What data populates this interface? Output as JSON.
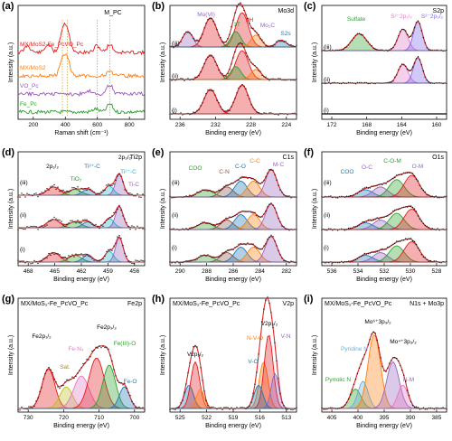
{
  "panels": [
    {
      "id": "a",
      "panel_label": "(a)",
      "title": "",
      "x_label": "Raman shift (cm⁻¹)",
      "y_label": "Intensity (a.u.)",
      "x_ticks": [
        "200",
        "400",
        "600",
        "800"
      ],
      "mpc_label": "M_PC",
      "spectra": [
        {
          "name": "MX/MoS2-Fe_PcVO_Pc",
          "color": "#e41a1c"
        },
        {
          "name": "MX/MoS2",
          "color": "#ff7f0e"
        },
        {
          "name": "VO_Pc",
          "color": "#9b59b6"
        },
        {
          "name": "Fe_Pc",
          "color": "#2ca02c"
        }
      ]
    },
    {
      "id": "b",
      "panel_label": "(b)",
      "title": "Mo3d",
      "x_label": "Binding energy (eV)",
      "y_label": "Intensity (a.u.)",
      "x_ticks": [
        "236",
        "232",
        "228",
        "224"
      ],
      "row_labels": [
        "(iii)",
        "(ii)",
        "(i)"
      ],
      "peak_labels": [
        "Mo(VI)",
        "2H",
        "1T",
        "Mo₂C",
        "S2s"
      ]
    },
    {
      "id": "c",
      "panel_label": "(c)",
      "title": "S2p",
      "x_label": "Binding energy (eV)",
      "y_label": "Intensity (a.u.)",
      "x_ticks": [
        "172",
        "168",
        "164",
        "160"
      ],
      "row_labels": [
        "(iii)",
        "(ii)",
        "(i)"
      ],
      "peak_labels": [
        "Sulfate",
        "S²⁻2p₁/₂",
        "S²⁻2p₃/₂"
      ]
    },
    {
      "id": "d",
      "panel_label": "(d)",
      "title": "Ti2p",
      "x_label": "Binding energy (eV)",
      "y_label": "Intensity (a.u.)",
      "x_ticks": [
        "468",
        "465",
        "462",
        "459",
        "456"
      ],
      "row_labels": [
        "(iii)",
        "(ii)",
        "(i)"
      ],
      "peak_labels": [
        "2p₁/₂",
        "2p₃/₂",
        "Ti³⁺-C",
        "Ti²⁺-C",
        "TiO₂",
        "Ti-C"
      ]
    },
    {
      "id": "e",
      "panel_label": "(e)",
      "title": "C1s",
      "x_label": "Binding energy (eV)",
      "y_label": "Intensity (a.u.)",
      "x_ticks": [
        "290",
        "288",
        "286",
        "284",
        "282"
      ],
      "row_labels": [
        "(iii)",
        "(ii)",
        "(i)"
      ],
      "peak_labels": [
        "COO",
        "C-N",
        "C-O",
        "C-C",
        "M-C"
      ]
    },
    {
      "id": "f",
      "panel_label": "(f)",
      "title": "O1s",
      "x_label": "Binding energy (eV)",
      "y_label": "Intensity (a.u.)",
      "x_ticks": [
        "536",
        "534",
        "532",
        "530",
        "528"
      ],
      "row_labels": [
        "(iii)",
        "(ii)",
        "(i)"
      ],
      "peak_labels": [
        "COO",
        "O-C",
        "C-O-M",
        "O-M"
      ]
    },
    {
      "id": "g",
      "panel_label": "(g)",
      "title": "Fe2p",
      "sample": "MX/MoS₂-Fe_PcVO_Pc",
      "x_label": "Binding energy (eV)",
      "y_label": "Intensity (a.u.)",
      "x_ticks": [
        "730",
        "720",
        "710",
        "700"
      ],
      "peak_labels": [
        "Fe2p₁/₂",
        "Sat.",
        "Fe-N₄",
        "Fe2p₃/₂",
        "Fe(III)-O",
        "Fe-O"
      ]
    },
    {
      "id": "h",
      "panel_label": "(h)",
      "title": "V2p",
      "sample": "MX/MoS₂-Fe_PcVO_Pc",
      "x_label": "Binding energy (eV)",
      "y_label": "Intensity (a.u.)",
      "x_ticks": [
        "525",
        "522",
        "519",
        "516",
        "513"
      ],
      "peak_labels": [
        "V2p₁/₂",
        "V2p₃/₂",
        "N-V-O",
        "V-N",
        "V-O"
      ]
    },
    {
      "id": "i",
      "panel_label": "(i)",
      "title": "N1s + Mo3p",
      "sample": "MX/MoS₂-Fe_PcVO_Pc",
      "x_label": "Binding energy (eV)",
      "y_label": "Intensity (a.u.)",
      "x_ticks": [
        "405",
        "400",
        "395",
        "390",
        "385"
      ],
      "peak_labels": [
        "Mo⁴⁺3p₃/₂",
        "Mo⁶⁺3p₃/₂",
        "Pyridine N",
        "Pyrrolic N",
        "N-M"
      ]
    }
  ],
  "chart_data": [
    {
      "type": "line",
      "panel": "a",
      "xlim": [
        100,
        900
      ],
      "x_unit": "cm⁻¹",
      "series": [
        {
          "name": "MX/MoS2-Fe_PcVO_Pc",
          "peaks": [
            [
              160,
              0.25
            ],
            [
              290,
              0.3
            ],
            [
              380,
              0.7
            ],
            [
              410,
              0.8
            ],
            [
              600,
              0.25
            ],
            [
              680,
              0.3
            ]
          ]
        },
        {
          "name": "MX/MoS2",
          "peaks": [
            [
              380,
              0.55
            ],
            [
              410,
              0.6
            ],
            [
              680,
              0.15
            ]
          ]
        },
        {
          "name": "VO_Pc",
          "peaks": [
            [
              560,
              0.12
            ],
            [
              680,
              0.35
            ]
          ]
        },
        {
          "name": "Fe_Pc",
          "peaks": [
            [
              590,
              0.12
            ],
            [
              680,
              0.3
            ]
          ]
        }
      ]
    },
    {
      "type": "line",
      "panel": "b",
      "xlim": [
        237,
        224
      ],
      "peaks_eV": {
        "Mo(VI)": 235.5,
        "2H_3d3/2": 232.3,
        "2H_3d5/2": 229.3,
        "1T": 230.0,
        "Mo2C": 228.5,
        "S2s": 226.5
      }
    },
    {
      "type": "line",
      "panel": "c",
      "xlim": [
        172,
        159
      ],
      "peaks_eV": {
        "Sulfate": 168.5,
        "S2p1/2": 163.3,
        "S2p3/2": 161.8
      }
    },
    {
      "type": "line",
      "panel": "d",
      "xlim": [
        469,
        455
      ],
      "peaks_eV": {
        "2p1/2": 465.0,
        "TiO2": 461.5,
        "Ti3+-C": 461.0,
        "Ti2+-C": 459.3,
        "2p3/2": 458.7,
        "Ti-C": 458.0
      }
    },
    {
      "type": "line",
      "panel": "e",
      "xlim": [
        291,
        282
      ],
      "peaks_eV": {
        "COO": 288.5,
        "C-N": 286.5,
        "C-O": 285.8,
        "C-C": 285.0,
        "M-C": 284.0
      }
    },
    {
      "type": "line",
      "panel": "f",
      "xlim": [
        536,
        528
      ],
      "peaks_eV": {
        "COO": 533.3,
        "O-C": 532.3,
        "C-O-M": 531.5,
        "O-M": 530.5
      }
    },
    {
      "type": "line",
      "panel": "g",
      "xlim": [
        731,
        700
      ],
      "peaks_eV": {
        "Fe2p1/2": 724,
        "Sat.": 719.5,
        "Fe-N4": 715,
        "Fe2p3/2": 710.5,
        "Fe(III)-O": 708.5,
        "Fe-O": 706.5
      }
    },
    {
      "type": "line",
      "panel": "h",
      "xlim": [
        526,
        513
      ],
      "peaks_eV": {
        "V2p1/2": 523.5,
        "V-O": 516.8,
        "N-V-O": 516.2,
        "V2p3/2": 515.5,
        "V-N": 515.0
      }
    },
    {
      "type": "line",
      "panel": "i",
      "xlim": [
        408,
        385
      ],
      "peaks_eV": {
        "Pyrrolic N": 401.5,
        "Pyridine N": 400.0,
        "Mo6+3p3/2": 398.5,
        "Mo4+3p3/2": 395.0,
        "N-M": 394.0
      }
    }
  ]
}
